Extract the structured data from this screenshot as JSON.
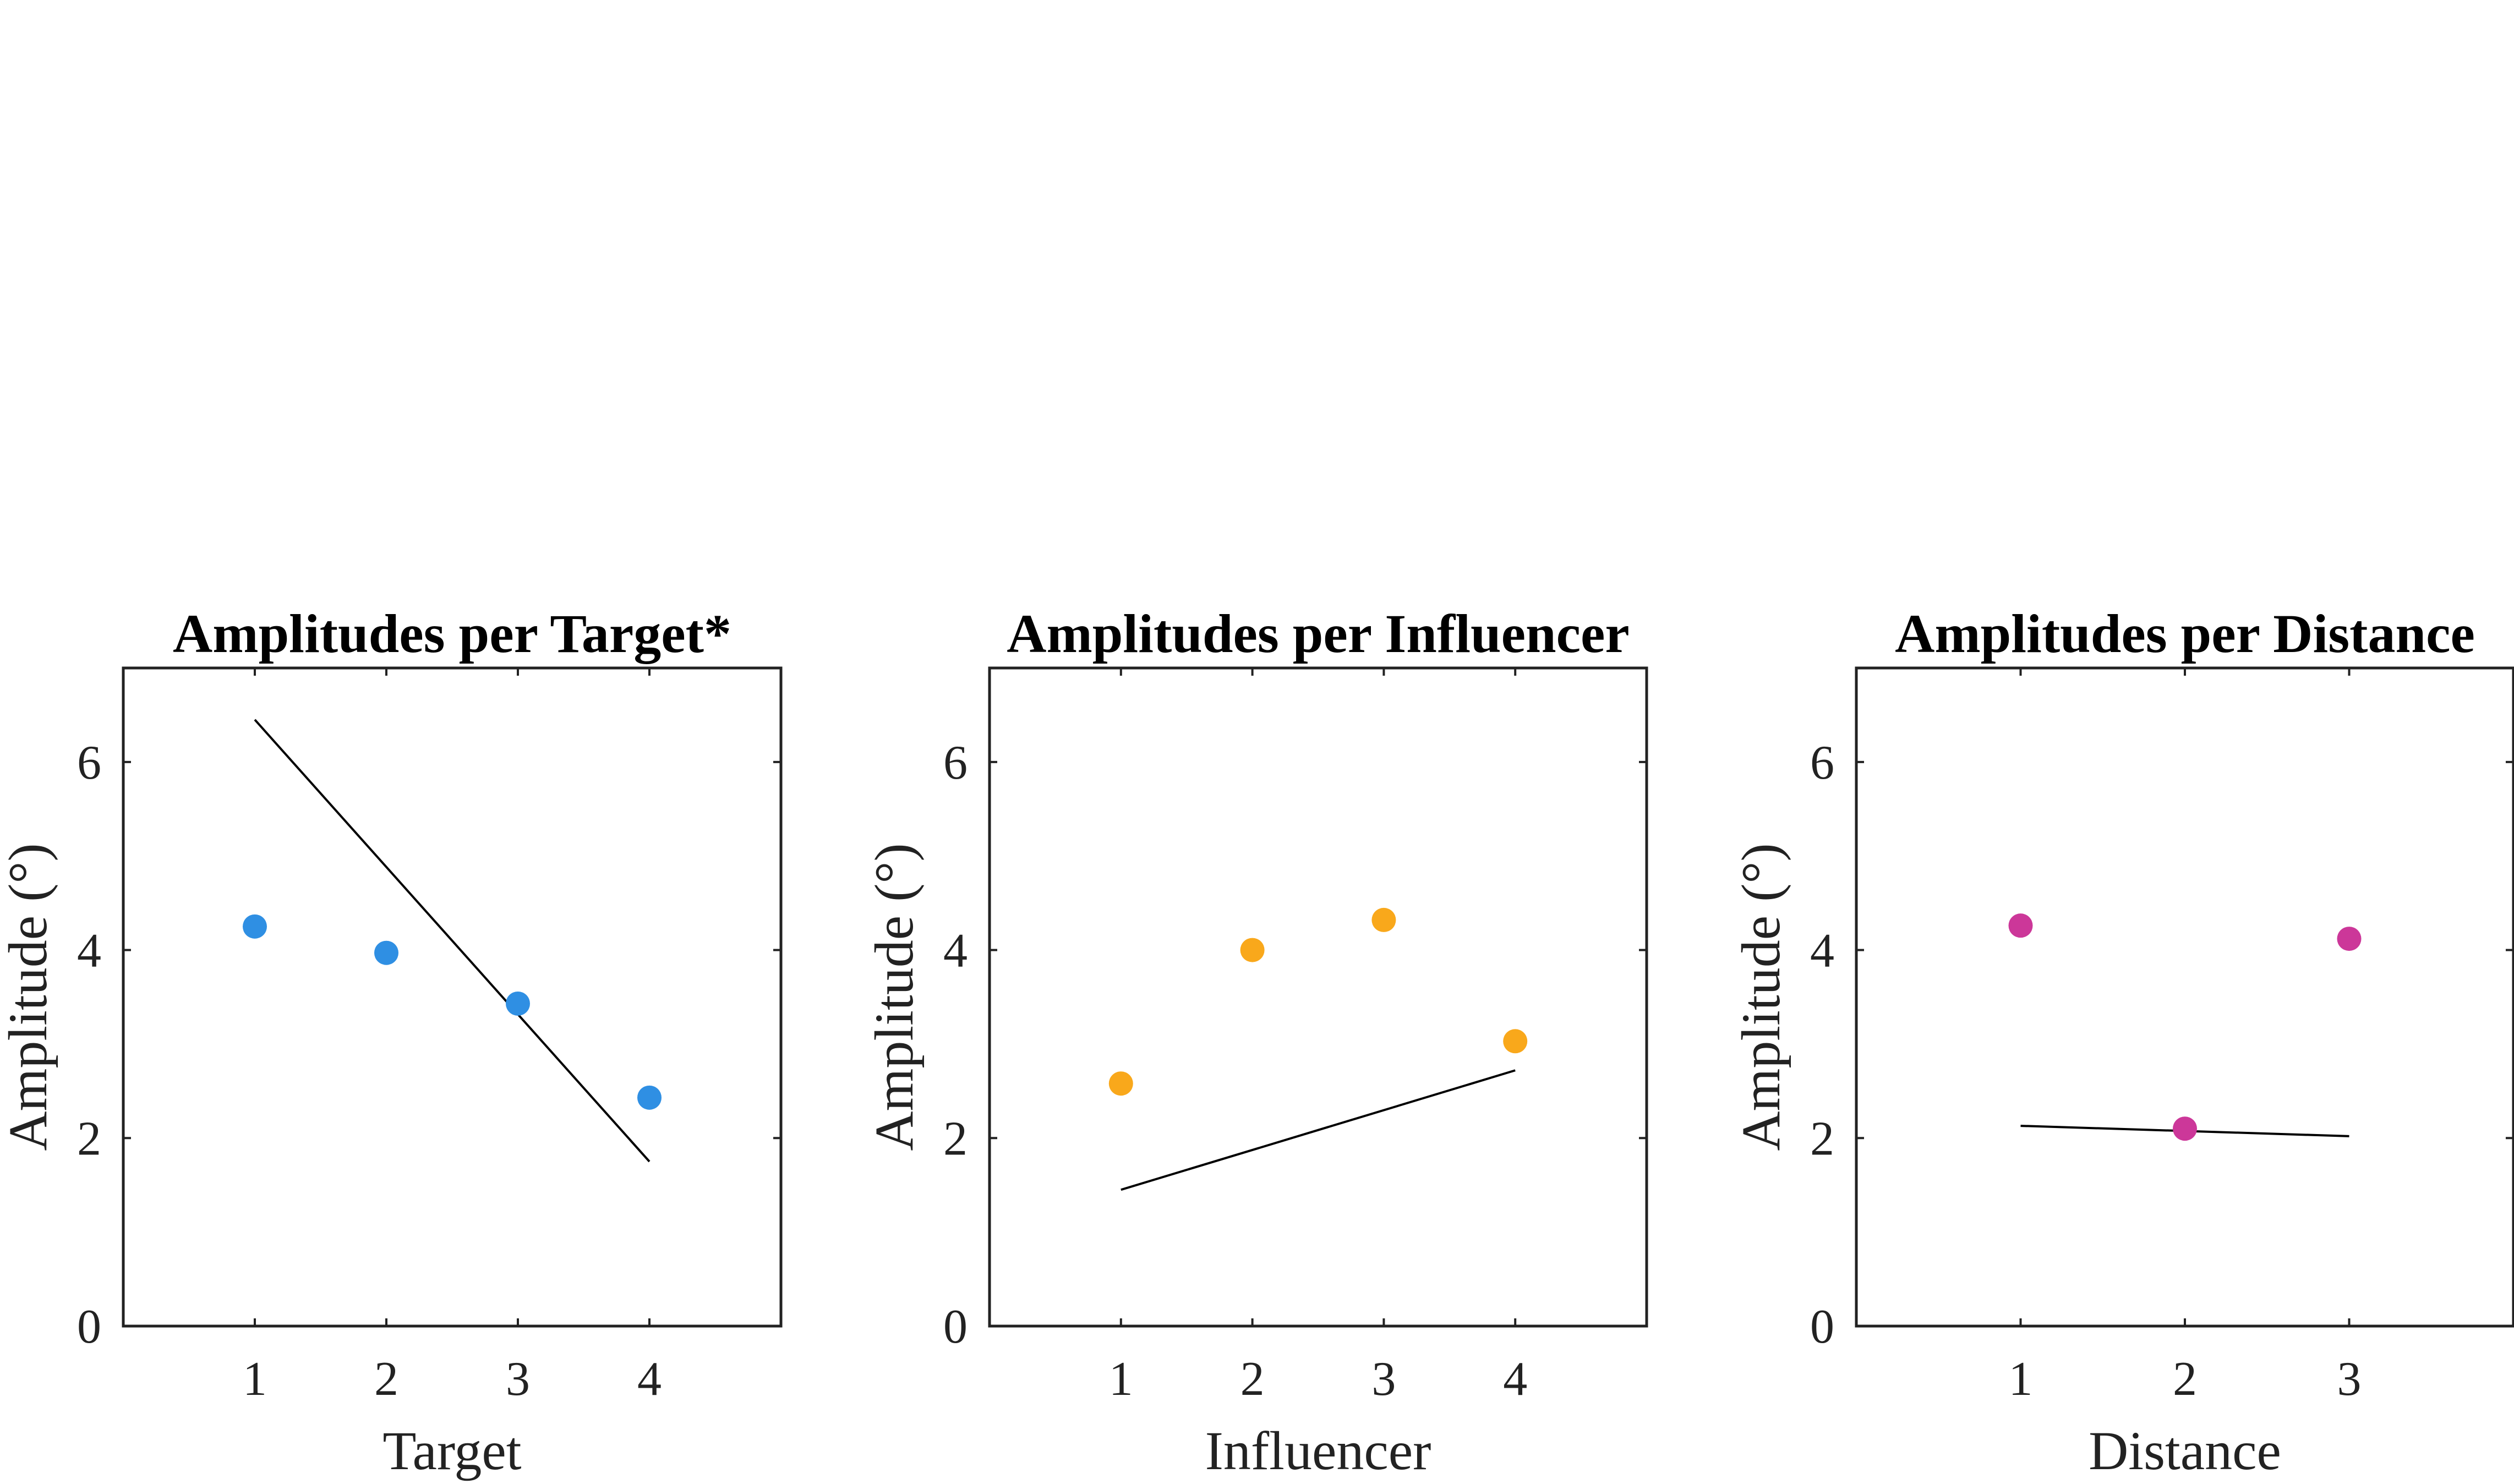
{
  "figure": {
    "top_mark": "."
  },
  "chart_data": [
    {
      "type": "scatter",
      "title": "Amplitudes per Target*",
      "xlabel": "Target",
      "ylabel": "Amplitude (°)",
      "xlim": [
        0,
        5
      ],
      "ylim": [
        0,
        7
      ],
      "xticks": [
        1,
        2,
        3,
        4
      ],
      "yticks": [
        0,
        2,
        4,
        6
      ],
      "grid": false,
      "color": "#2f8fe3",
      "points": [
        {
          "x": 1,
          "y": 4.25
        },
        {
          "x": 2,
          "y": 3.97
        },
        {
          "x": 3,
          "y": 3.43
        },
        {
          "x": 4,
          "y": 2.43
        }
      ],
      "fit_line": [
        {
          "x": 1,
          "y": 6.45
        },
        {
          "x": 4,
          "y": 1.75
        }
      ]
    },
    {
      "type": "scatter",
      "title": "Amplitudes per Influencer",
      "xlabel": "Influencer",
      "ylabel": "Amplitude (°)",
      "xlim": [
        0,
        5
      ],
      "ylim": [
        0,
        7
      ],
      "xticks": [
        1,
        2,
        3,
        4
      ],
      "yticks": [
        0,
        2,
        4,
        6
      ],
      "grid": false,
      "color": "#f9a81b",
      "points": [
        {
          "x": 1,
          "y": 2.58
        },
        {
          "x": 2,
          "y": 4.0
        },
        {
          "x": 3,
          "y": 4.32
        },
        {
          "x": 4,
          "y": 3.03
        }
      ],
      "fit_line": [
        {
          "x": 1,
          "y": 1.45
        },
        {
          "x": 4,
          "y": 2.72
        }
      ]
    },
    {
      "type": "scatter",
      "title": "Amplitudes per Distance",
      "xlabel": "Distance",
      "ylabel": "Amplitude (°)",
      "xlim": [
        0,
        4
      ],
      "ylim": [
        0,
        7
      ],
      "xticks": [
        1,
        2,
        3
      ],
      "yticks": [
        0,
        2,
        4,
        6
      ],
      "grid": false,
      "color": "#cc3799",
      "points": [
        {
          "x": 1,
          "y": 4.26
        },
        {
          "x": 2,
          "y": 2.1
        },
        {
          "x": 3,
          "y": 4.12
        }
      ],
      "fit_line": [
        {
          "x": 1,
          "y": 2.13
        },
        {
          "x": 3,
          "y": 2.02
        }
      ]
    }
  ]
}
